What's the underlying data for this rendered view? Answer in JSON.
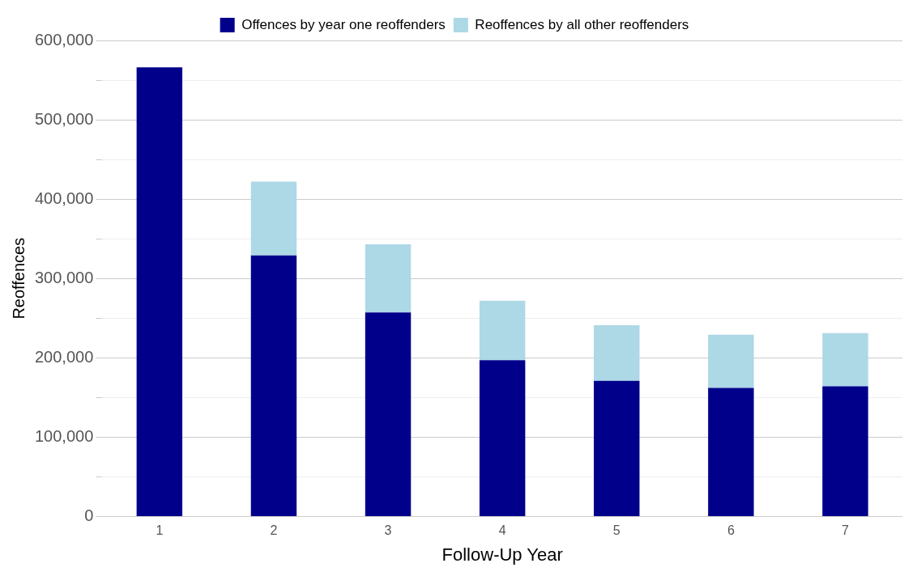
{
  "chart_data": {
    "type": "bar",
    "stacked": true,
    "xlabel": "Follow-Up Year",
    "ylabel": "Reoffences",
    "categories": [
      "1",
      "2",
      "3",
      "4",
      "5",
      "6",
      "7"
    ],
    "series": [
      {
        "name": "Offences by year one reoffenders",
        "color": "#00008b",
        "values": [
          566000,
          329000,
          257000,
          197000,
          171000,
          162000,
          164000
        ]
      },
      {
        "name": "Reoffences by all other reoffenders",
        "color": "#add8e6",
        "values": [
          null,
          93000,
          86000,
          75000,
          70000,
          67000,
          67000
        ]
      }
    ],
    "ylim": [
      0,
      600000
    ],
    "yticks": [
      {
        "value": 0,
        "label": "0"
      },
      {
        "value": 50000,
        "label": null
      },
      {
        "value": 100000,
        "label": "100,000"
      },
      {
        "value": 150000,
        "label": null
      },
      {
        "value": 200000,
        "label": "200,000"
      },
      {
        "value": 250000,
        "label": null
      },
      {
        "value": 300000,
        "label": "300,000"
      },
      {
        "value": 350000,
        "label": null
      },
      {
        "value": 400000,
        "label": "400,000"
      },
      {
        "value": 450000,
        "label": null
      },
      {
        "value": 500000,
        "label": "500,000"
      },
      {
        "value": 550000,
        "label": null
      },
      {
        "value": 600000,
        "label": "600,000"
      }
    ],
    "grid": "y",
    "legend": "top"
  }
}
